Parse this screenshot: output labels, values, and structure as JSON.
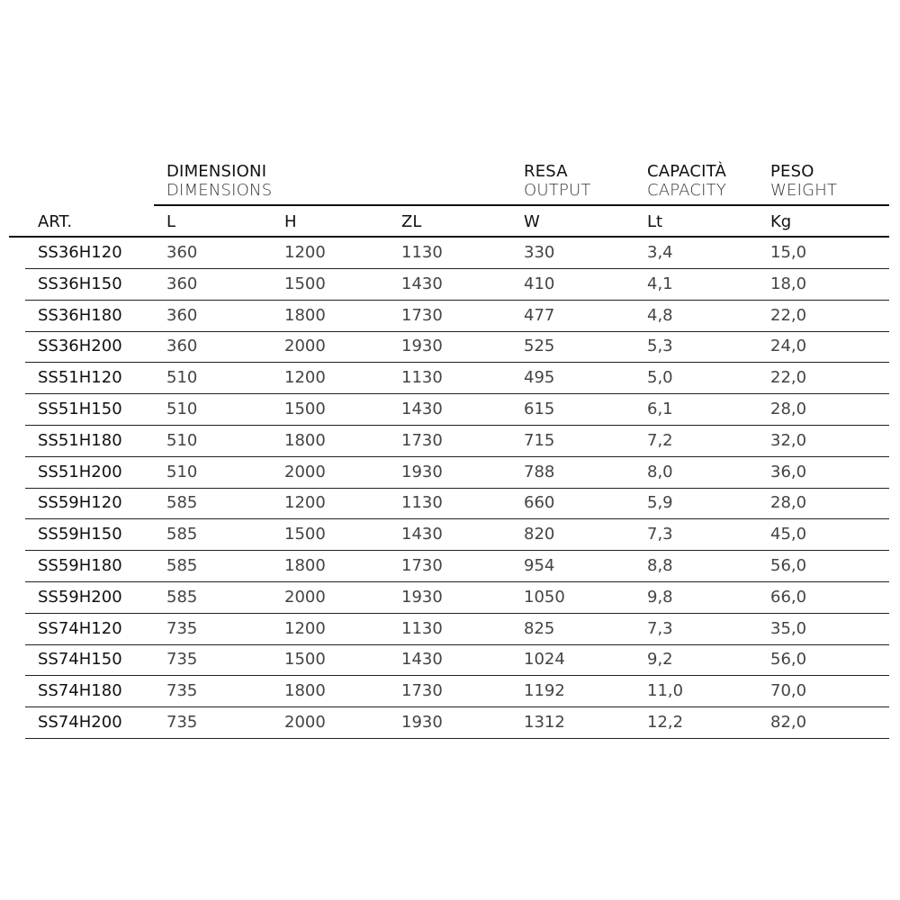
{
  "headers": {
    "group_dimensions": {
      "it": "DIMENSIONI",
      "en": "DIMENSIONS"
    },
    "group_output": {
      "it": "RESA",
      "en": "OUTPUT"
    },
    "group_capacity": {
      "it": "CAPACITÀ",
      "en": "CAPACITY"
    },
    "group_weight": {
      "it": "PESO",
      "en": "WEIGHT"
    },
    "columns": [
      "ART.",
      "L",
      "H",
      "ZL",
      "W",
      "Lt",
      "Kg"
    ]
  },
  "rows": [
    [
      "SS36H120",
      "360",
      "1200",
      "1130",
      "330",
      "3,4",
      "15,0"
    ],
    [
      "SS36H150",
      "360",
      "1500",
      "1430",
      "410",
      "4,1",
      "18,0"
    ],
    [
      "SS36H180",
      "360",
      "1800",
      "1730",
      "477",
      "4,8",
      "22,0"
    ],
    [
      "SS36H200",
      "360",
      "2000",
      "1930",
      "525",
      "5,3",
      "24,0"
    ],
    [
      "SS51H120",
      "510",
      "1200",
      "1130",
      "495",
      "5,0",
      "22,0"
    ],
    [
      "SS51H150",
      "510",
      "1500",
      "1430",
      "615",
      "6,1",
      "28,0"
    ],
    [
      "SS51H180",
      "510",
      "1800",
      "1730",
      "715",
      "7,2",
      "32,0"
    ],
    [
      "SS51H200",
      "510",
      "2000",
      "1930",
      "788",
      "8,0",
      "36,0"
    ],
    [
      "SS59H120",
      "585",
      "1200",
      "1130",
      "660",
      "5,9",
      "28,0"
    ],
    [
      "SS59H150",
      "585",
      "1500",
      "1430",
      "820",
      "7,3",
      "45,0"
    ],
    [
      "SS59H180",
      "585",
      "1800",
      "1730",
      "954",
      "8,8",
      "56,0"
    ],
    [
      "SS59H200",
      "585",
      "2000",
      "1930",
      "1050",
      "9,8",
      "66,0"
    ],
    [
      "SS74H120",
      "735",
      "1200",
      "1130",
      "825",
      "7,3",
      "35,0"
    ],
    [
      "SS74H150",
      "735",
      "1500",
      "1430",
      "1024",
      "9,2",
      "56,0"
    ],
    [
      "SS74H180",
      "735",
      "1800",
      "1730",
      "1192",
      "11,0",
      "70,0"
    ],
    [
      "SS74H200",
      "735",
      "2000",
      "1930",
      "1312",
      "12,2",
      "82,0"
    ]
  ]
}
